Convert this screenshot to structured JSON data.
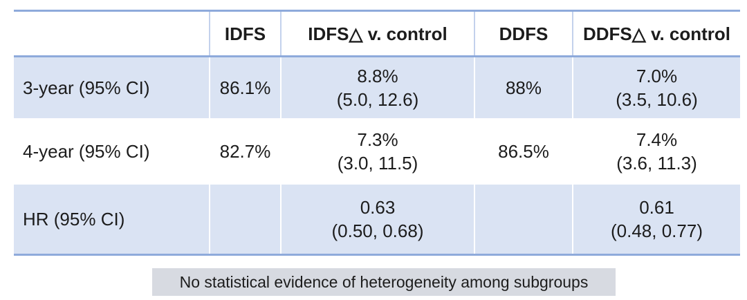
{
  "chart_data": {
    "type": "table",
    "title": "",
    "columns": [
      "",
      "IDFS",
      "IDFS△ v. control",
      "DDFS",
      "DDFS△ v. control"
    ],
    "rows": [
      {
        "label": "3-year (95% CI)",
        "cells": [
          [
            "86.1%"
          ],
          [
            "8.8%",
            "(5.0, 12.6)"
          ],
          [
            "88%"
          ],
          [
            "7.0%",
            "(3.5, 10.6)"
          ]
        ]
      },
      {
        "label": "4-year (95% CI)",
        "cells": [
          [
            "82.7%"
          ],
          [
            "7.3%",
            "(3.0, 11.5)"
          ],
          [
            "86.5%"
          ],
          [
            "7.4%",
            "(3.6, 11.3)"
          ]
        ]
      },
      {
        "label": "HR (95% CI)",
        "cells": [
          [],
          [
            "0.63",
            "(0.50, 0.68)"
          ],
          [],
          [
            "0.61",
            "(0.48, 0.77)"
          ]
        ]
      }
    ],
    "layout": {
      "banded_rows": true,
      "band_fill": "#dae3f3",
      "border_color": "#8eaadb",
      "header_bold": true
    }
  },
  "footnote": "No statistical evidence of heterogeneity among subgroups",
  "colors": {
    "row_band": "#dae3f3",
    "table_border": "#8eaadb",
    "footnote_bg": "#d7dae1",
    "text": "#1c1c1c"
  }
}
